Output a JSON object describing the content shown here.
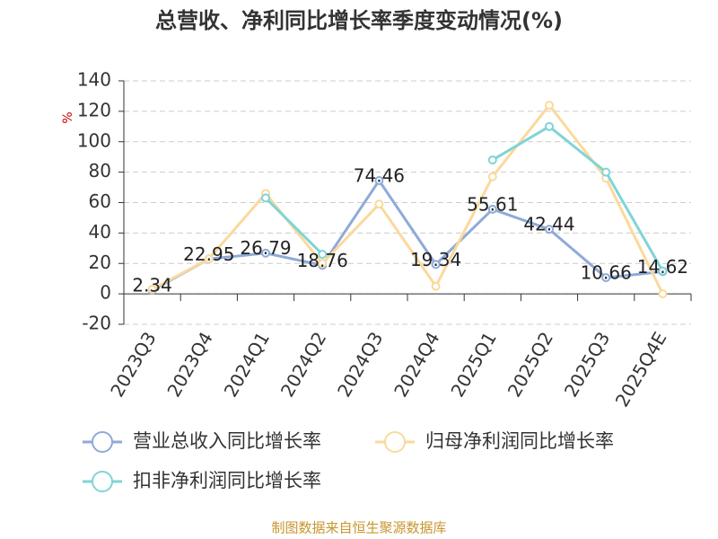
{
  "chart_data": {
    "type": "line",
    "title": "总营收、净利同比增长率季度变动情况(%)",
    "y_label": "%",
    "source": "制图数据来自恒生聚源数据库",
    "categories": [
      "2023Q3",
      "2023Q4",
      "2024Q1",
      "2024Q2",
      "2024Q3",
      "2024Q4",
      "2025Q1",
      "2025Q2",
      "2025Q3",
      "2025Q4E"
    ],
    "series": [
      {
        "name": "营业总收入同比增长率",
        "color": "#8eaad8",
        "values": [
          2.34,
          22.95,
          26.79,
          18.76,
          74.46,
          19.34,
          55.61,
          42.44,
          10.66,
          14.62
        ],
        "labels": true
      },
      {
        "name": "归母净利润同比增长率",
        "color": "#fbd99c",
        "values": [
          3,
          23,
          66,
          20,
          59,
          5,
          77,
          124,
          76,
          0
        ]
      },
      {
        "name": "扣非净利润同比增长率",
        "color": "#80d4d6",
        "values": [
          null,
          null,
          63,
          26,
          null,
          null,
          88,
          110,
          80,
          15
        ]
      }
    ],
    "ylim": [
      -20,
      140
    ],
    "yticks": [
      -20,
      0,
      20,
      40,
      60,
      80,
      100,
      120,
      140
    ],
    "grid": true
  }
}
